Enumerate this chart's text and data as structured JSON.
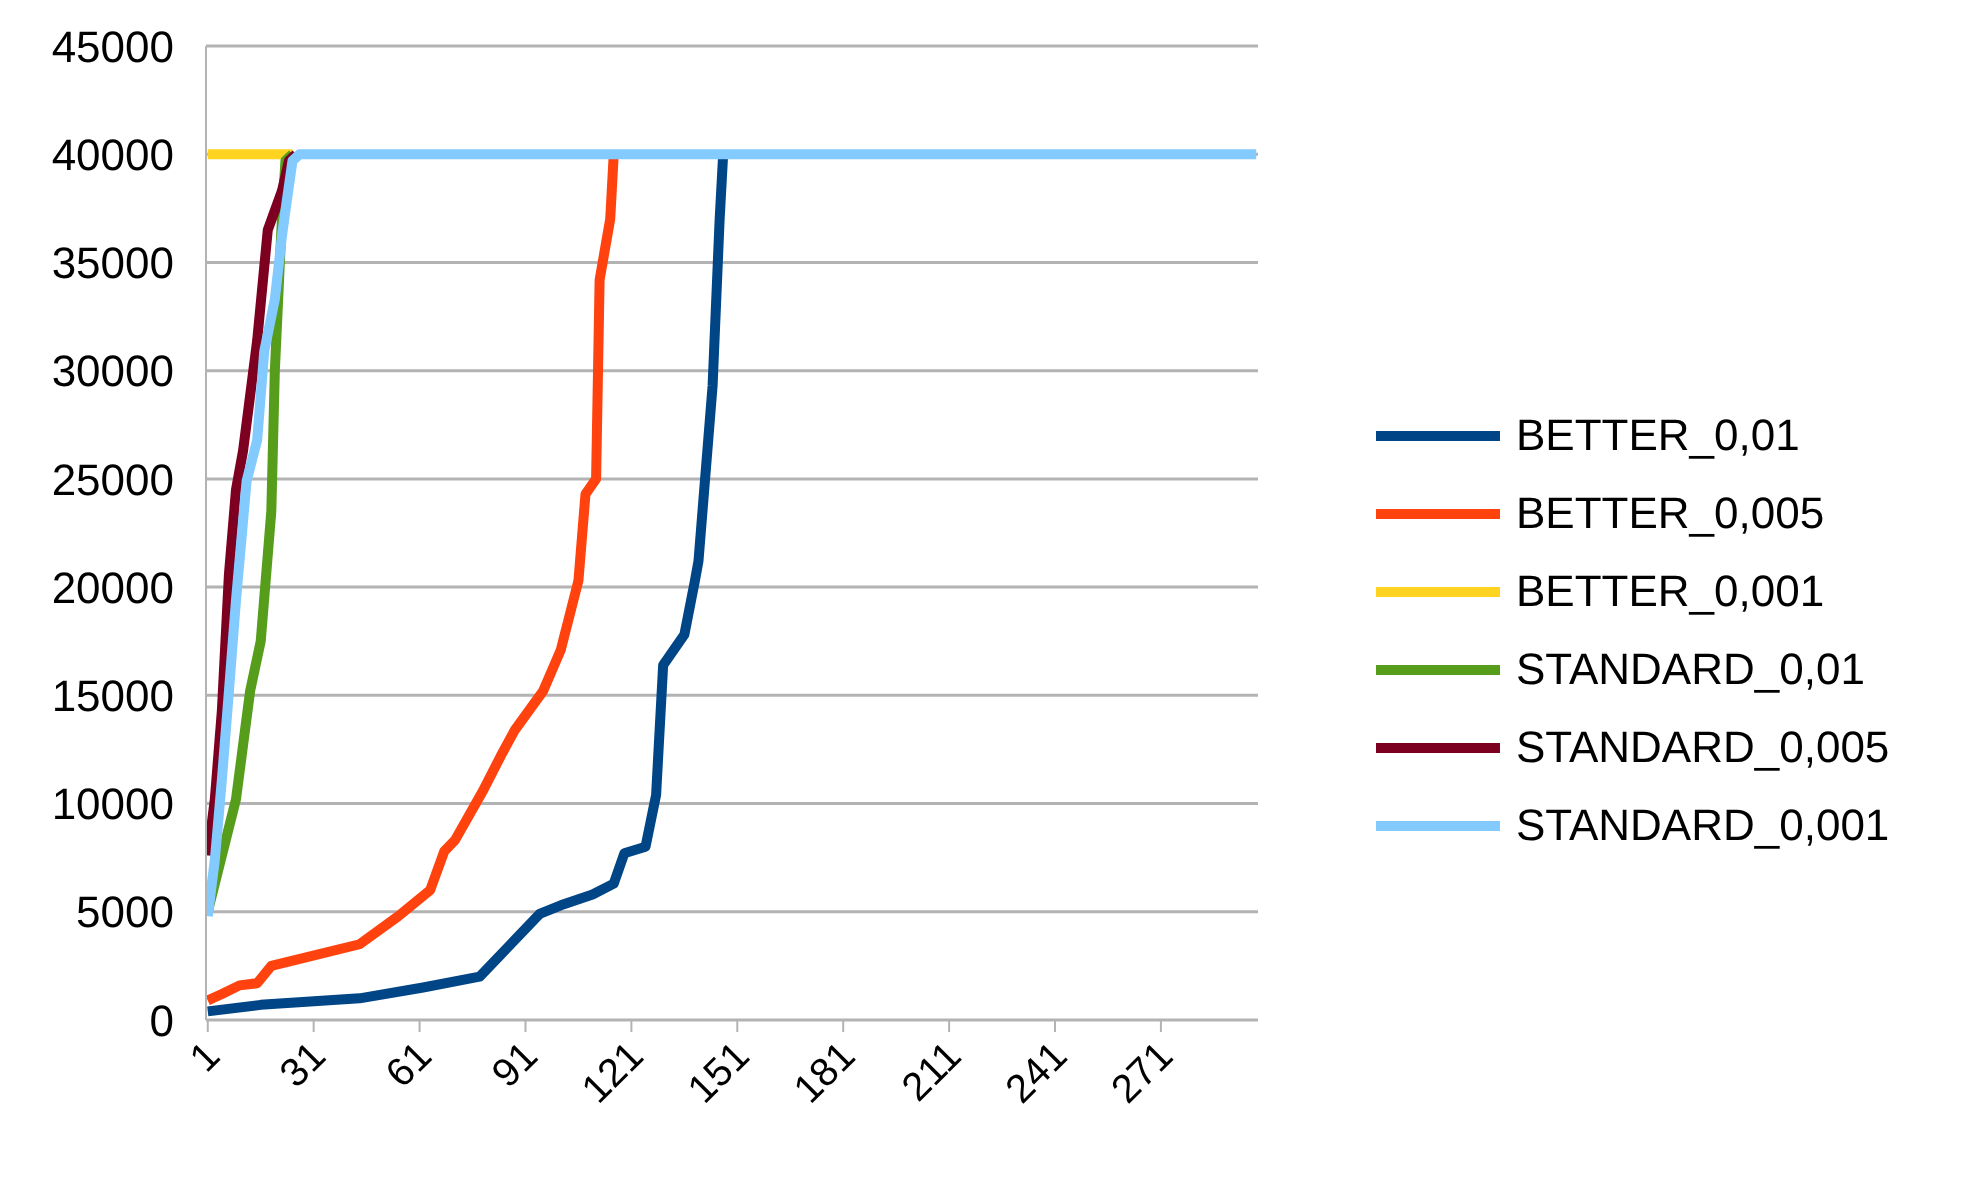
{
  "chart_data": {
    "type": "line",
    "xlim": [
      0.5,
      298.5
    ],
    "xticks": [
      1,
      31,
      61,
      91,
      121,
      151,
      181,
      211,
      241,
      271
    ],
    "ylim": [
      0,
      45000
    ],
    "yticks": [
      0,
      5000,
      10000,
      15000,
      20000,
      25000,
      30000,
      35000,
      40000,
      45000
    ],
    "grid": "y",
    "legend": "right",
    "marker": "none",
    "line_style": "solid",
    "series": [
      {
        "name": "BETTER_0,01",
        "color": "#004586",
        "x": [
          1,
          16,
          44,
          62,
          78,
          95,
          101,
          110,
          116,
          119,
          125,
          128,
          130,
          136,
          139,
          140,
          144,
          146,
          147
        ],
        "values": [
          400,
          700,
          1000,
          1500,
          2000,
          4900,
          5300,
          5800,
          6300,
          7700,
          8000,
          10400,
          16400,
          17800,
          20300,
          21200,
          29300,
          37000,
          40000
        ]
      },
      {
        "name": "BETTER_0,005",
        "color": "#ff420e",
        "x": [
          1,
          5,
          10,
          15,
          19,
          44,
          55,
          64,
          68,
          71,
          79,
          84,
          88,
          96,
          101,
          106,
          108,
          111,
          112,
          115,
          116
        ],
        "values": [
          900,
          1200,
          1600,
          1700,
          2500,
          3500,
          4800,
          6000,
          7800,
          8300,
          10600,
          12200,
          13400,
          15200,
          17100,
          20300,
          24300,
          25000,
          34200,
          37000,
          40000
        ]
      },
      {
        "name": "BETTER_0,001",
        "color": "#ffd320",
        "x": [
          1,
          25
        ],
        "values": [
          40000,
          40000
        ]
      },
      {
        "name": "STANDARD_0,01",
        "color": "#579d1c",
        "x": [
          1,
          9,
          13,
          16,
          19,
          20,
          22,
          23,
          25
        ],
        "values": [
          5000,
          10200,
          15200,
          17500,
          23500,
          30000,
          37000,
          39700,
          40000
        ]
      },
      {
        "name": "STANDARD_0,005",
        "color": "#7e0021",
        "x": [
          1,
          3,
          5,
          7,
          9,
          11,
          15,
          18,
          22,
          24,
          26
        ],
        "values": [
          7600,
          10200,
          14300,
          20600,
          24500,
          26300,
          31400,
          36500,
          38300,
          39700,
          40000
        ]
      },
      {
        "name": "STANDARD_0,001",
        "color": "#83caff",
        "x": [
          1,
          3,
          5,
          7,
          9,
          12,
          15,
          17,
          20,
          22,
          23,
          25,
          27,
          298
        ],
        "values": [
          4800,
          7400,
          11100,
          15200,
          19400,
          24900,
          26800,
          30900,
          33300,
          36200,
          37400,
          39700,
          40000,
          40000
        ]
      }
    ]
  }
}
